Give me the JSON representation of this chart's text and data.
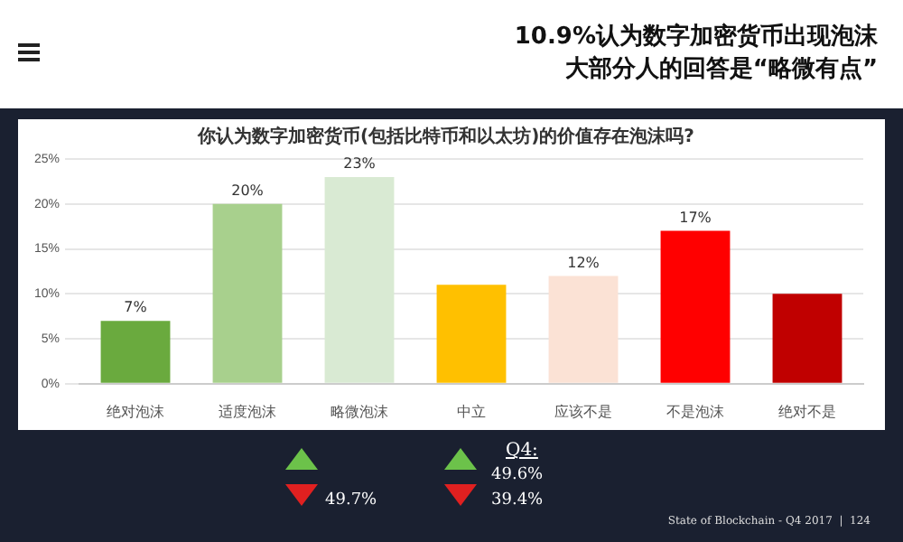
{
  "chart_data": {
    "type": "bar",
    "title": "你认为数字加密货币(包括比特币和以太坊)的价值存在泡沫吗?",
    "subtitle": "10.9%认为数字加密货币出现泡沫",
    "categories": [
      "绝对泡沫",
      "适度泡沫",
      "略微泡沫",
      "中立",
      "应该不是",
      "不是泡沫",
      "绝对不是"
    ],
    "values": [
      7,
      20,
      23,
      11,
      12,
      17,
      10
    ],
    "value_labels": [
      "7%",
      "20%",
      "23%",
      null,
      "12%",
      "17%",
      null
    ],
    "colors": [
      "#6aaa3e",
      "#a8d08d",
      "#d9ead3",
      "#ffc000",
      "#fbe2d5",
      "#ff0000",
      "#c00000"
    ],
    "ylim": [
      0,
      25
    ],
    "yticks": [
      {
        "value": 0,
        "label": "0%"
      },
      {
        "value": 5,
        "label": "5%"
      },
      {
        "value": 10,
        "label": "10%"
      },
      {
        "value": 15,
        "label": "15%"
      },
      {
        "value": 20,
        "label": "20%"
      },
      {
        "value": 25,
        "label": "25%"
      }
    ],
    "grid": "y",
    "legend": false,
    "annotations": [
      "大部分人的回答是“略微有点”",
      "Q4:",
      "49.7%",
      "49.6%",
      "39.4%",
      "State of Blockchain - Q4 2017  |  124"
    ]
  }
}
